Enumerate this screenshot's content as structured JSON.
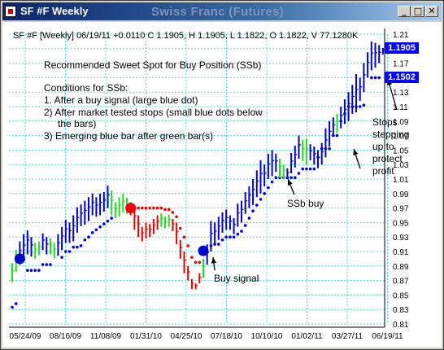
{
  "window": {
    "title": "SF #F Weekly",
    "chart_title": "Swiss Franc (Futures)",
    "buttons": {
      "minimize": "_",
      "maximize": "□",
      "close": "✕"
    }
  },
  "header": "SF #F [Weekly] 06/19/11 +0.0110 C 1.1905, H 1.1905, L 1.1822, O 1.1822, V 77.1280K",
  "notes": {
    "title": "Recommended Sweet Spot for Buy Position (SSb)",
    "conditions_title": "Conditions for SSb:",
    "c1": "1. After a buy signal (large blue dot)",
    "c2": "2) After market tested stops (small blue dots below",
    "c2b": "the bars)",
    "c3": "3) Emerging blue bar after green bar(s)"
  },
  "annotations": {
    "buy_signal": "Buy signal",
    "ssb_buy": "SSb buy",
    "stops1": "Stops",
    "stops2": "stepping",
    "stops3": "up to",
    "stops4": "protect",
    "stops5": "profit"
  },
  "price_tags": {
    "last": "1.1905",
    "stop": "1.1502"
  },
  "colors": {
    "up": "#0000c8",
    "correction": "#22dd22",
    "down": "#ee0000",
    "stop_long": "#0000dd",
    "stop_short": "#ee0000",
    "grid": "#40e0d0"
  },
  "chart_data": {
    "type": "ohlc-bar",
    "y_ticks": [
      "1.21",
      "1.19",
      "1.17",
      "1.15",
      "1.13",
      "1.11",
      "1.09",
      "1.07",
      "1.05",
      "1.03",
      "1.01",
      "0.99",
      "0.97",
      "0.95",
      "0.93",
      "0.91",
      "0.89",
      "0.87",
      "0.85",
      "0.83",
      "0.81"
    ],
    "ylim": [
      0.81,
      1.21
    ],
    "x_ticks": [
      "05/24/09",
      "08/16/09",
      "11/08/09",
      "01/31/10",
      "04/25/10",
      "07/18/10",
      "10/10/10",
      "01/02/11",
      "03/27/11",
      "06/19/11"
    ],
    "bars": [
      {
        "l": 0.868,
        "h": 0.894,
        "c": "g"
      },
      {
        "l": 0.882,
        "h": 0.912,
        "c": "g"
      },
      {
        "l": 0.892,
        "h": 0.924,
        "c": "b"
      },
      {
        "l": 0.896,
        "h": 0.934,
        "c": "b"
      },
      {
        "l": 0.906,
        "h": 0.939,
        "c": "b"
      },
      {
        "l": 0.903,
        "h": 0.93,
        "c": "b"
      },
      {
        "l": 0.9,
        "h": 0.922,
        "c": "g"
      },
      {
        "l": 0.905,
        "h": 0.924,
        "c": "g"
      },
      {
        "l": 0.912,
        "h": 0.935,
        "c": "b"
      },
      {
        "l": 0.906,
        "h": 0.93,
        "c": "b"
      },
      {
        "l": 0.906,
        "h": 0.928,
        "c": "g"
      },
      {
        "l": 0.901,
        "h": 0.922,
        "c": "g"
      },
      {
        "l": 0.904,
        "h": 0.934,
        "c": "b"
      },
      {
        "l": 0.912,
        "h": 0.944,
        "c": "b"
      },
      {
        "l": 0.922,
        "h": 0.954,
        "c": "b"
      },
      {
        "l": 0.922,
        "h": 0.95,
        "c": "b"
      },
      {
        "l": 0.924,
        "h": 0.96,
        "c": "b"
      },
      {
        "l": 0.936,
        "h": 0.971,
        "c": "b"
      },
      {
        "l": 0.945,
        "h": 0.975,
        "c": "b"
      },
      {
        "l": 0.947,
        "h": 0.98,
        "c": "b"
      },
      {
        "l": 0.952,
        "h": 0.985,
        "c": "b"
      },
      {
        "l": 0.96,
        "h": 0.99,
        "c": "b"
      },
      {
        "l": 0.958,
        "h": 0.985,
        "c": "b"
      },
      {
        "l": 0.96,
        "h": 0.99,
        "c": "b"
      },
      {
        "l": 0.965,
        "h": 0.992,
        "c": "b"
      },
      {
        "l": 0.97,
        "h": 1.001,
        "c": "b"
      },
      {
        "l": 0.96,
        "h": 0.994,
        "c": "g"
      },
      {
        "l": 0.956,
        "h": 0.978,
        "c": "g"
      },
      {
        "l": 0.958,
        "h": 0.985,
        "c": "g"
      },
      {
        "l": 0.964,
        "h": 0.99,
        "c": "g"
      },
      {
        "l": 0.962,
        "h": 0.984,
        "c": "g"
      },
      {
        "l": 0.96,
        "h": 0.978,
        "c": "r"
      },
      {
        "l": 0.94,
        "h": 0.972,
        "c": "r"
      },
      {
        "l": 0.93,
        "h": 0.96,
        "c": "r"
      },
      {
        "l": 0.924,
        "h": 0.944,
        "c": "r"
      },
      {
        "l": 0.928,
        "h": 0.95,
        "c": "r"
      },
      {
        "l": 0.93,
        "h": 0.948,
        "c": "r"
      },
      {
        "l": 0.934,
        "h": 0.955,
        "c": "r"
      },
      {
        "l": 0.94,
        "h": 0.96,
        "c": "r"
      },
      {
        "l": 0.944,
        "h": 0.963,
        "c": "g"
      },
      {
        "l": 0.942,
        "h": 0.958,
        "c": "g"
      },
      {
        "l": 0.944,
        "h": 0.961,
        "c": "g"
      },
      {
        "l": 0.938,
        "h": 0.955,
        "c": "r"
      },
      {
        "l": 0.92,
        "h": 0.95,
        "c": "r"
      },
      {
        "l": 0.9,
        "h": 0.926,
        "c": "r"
      },
      {
        "l": 0.88,
        "h": 0.91,
        "c": "r"
      },
      {
        "l": 0.87,
        "h": 0.89,
        "c": "r"
      },
      {
        "l": 0.858,
        "h": 0.872,
        "c": "r"
      },
      {
        "l": 0.858,
        "h": 0.866,
        "c": "r"
      },
      {
        "l": 0.866,
        "h": 0.88,
        "c": "r"
      },
      {
        "l": 0.874,
        "h": 0.9,
        "c": "g"
      },
      {
        "l": 0.892,
        "h": 0.92,
        "c": "b"
      },
      {
        "l": 0.91,
        "h": 0.952,
        "c": "b"
      },
      {
        "l": 0.92,
        "h": 0.95,
        "c": "b"
      },
      {
        "l": 0.926,
        "h": 0.958,
        "c": "b"
      },
      {
        "l": 0.936,
        "h": 0.964,
        "c": "b"
      },
      {
        "l": 0.94,
        "h": 0.968,
        "c": "b"
      },
      {
        "l": 0.94,
        "h": 0.96,
        "c": "b"
      },
      {
        "l": 0.934,
        "h": 0.956,
        "c": "b"
      },
      {
        "l": 0.944,
        "h": 0.976,
        "c": "b"
      },
      {
        "l": 0.95,
        "h": 0.98,
        "c": "b"
      },
      {
        "l": 0.962,
        "h": 0.992,
        "c": "b"
      },
      {
        "l": 0.97,
        "h": 1.0,
        "c": "b"
      },
      {
        "l": 0.974,
        "h": 1.01,
        "c": "b"
      },
      {
        "l": 0.985,
        "h": 1.022,
        "c": "b"
      },
      {
        "l": 0.99,
        "h": 1.036,
        "c": "b"
      },
      {
        "l": 1.0,
        "h": 1.03,
        "c": "b"
      },
      {
        "l": 1.01,
        "h": 1.045,
        "c": "b"
      },
      {
        "l": 1.014,
        "h": 1.05,
        "c": "b"
      },
      {
        "l": 1.02,
        "h": 1.045,
        "c": "b"
      },
      {
        "l": 1.012,
        "h": 1.038,
        "c": "g"
      },
      {
        "l": 1.01,
        "h": 1.03,
        "c": "g"
      },
      {
        "l": 1.01,
        "h": 1.025,
        "c": "b"
      },
      {
        "l": 1.018,
        "h": 1.046,
        "c": "b"
      },
      {
        "l": 1.026,
        "h": 1.056,
        "c": "b"
      },
      {
        "l": 1.038,
        "h": 1.07,
        "c": "b"
      },
      {
        "l": 1.035,
        "h": 1.064,
        "c": "g"
      },
      {
        "l": 1.03,
        "h": 1.066,
        "c": "g"
      },
      {
        "l": 1.036,
        "h": 1.058,
        "c": "b"
      },
      {
        "l": 1.03,
        "h": 1.055,
        "c": "b"
      },
      {
        "l": 1.025,
        "h": 1.05,
        "c": "b"
      },
      {
        "l": 1.03,
        "h": 1.06,
        "c": "b"
      },
      {
        "l": 1.04,
        "h": 1.08,
        "c": "b"
      },
      {
        "l": 1.055,
        "h": 1.09,
        "c": "b"
      },
      {
        "l": 1.07,
        "h": 1.095,
        "c": "b"
      },
      {
        "l": 1.074,
        "h": 1.1,
        "c": "g"
      },
      {
        "l": 1.08,
        "h": 1.11,
        "c": "b"
      },
      {
        "l": 1.086,
        "h": 1.12,
        "c": "b"
      },
      {
        "l": 1.09,
        "h": 1.13,
        "c": "b"
      },
      {
        "l": 1.1,
        "h": 1.14,
        "c": "b"
      },
      {
        "l": 1.102,
        "h": 1.155,
        "c": "b"
      },
      {
        "l": 1.118,
        "h": 1.15,
        "c": "b"
      },
      {
        "l": 1.13,
        "h": 1.17,
        "c": "b"
      },
      {
        "l": 1.15,
        "h": 1.185,
        "c": "b"
      },
      {
        "l": 1.16,
        "h": 1.2,
        "c": "b"
      },
      {
        "l": 1.164,
        "h": 1.198,
        "c": "b"
      },
      {
        "l": 1.17,
        "h": 1.195,
        "c": "b"
      },
      {
        "l": 1.182,
        "h": 1.191,
        "c": "b"
      }
    ],
    "stops": [
      {
        "i": 0,
        "v": 0.833,
        "c": "b"
      },
      {
        "i": 1,
        "v": 0.838,
        "c": "b"
      },
      {
        "i": 4,
        "v": 0.884,
        "c": "b"
      },
      {
        "i": 5,
        "v": 0.884,
        "c": "b"
      },
      {
        "i": 6,
        "v": 0.884,
        "c": "b"
      },
      {
        "i": 7,
        "v": 0.884,
        "c": "b"
      },
      {
        "i": 8,
        "v": 0.892,
        "c": "b"
      },
      {
        "i": 9,
        "v": 0.892,
        "c": "b"
      },
      {
        "i": 10,
        "v": 0.892,
        "c": "b"
      },
      {
        "i": 13,
        "v": 0.902,
        "c": "b"
      },
      {
        "i": 14,
        "v": 0.91,
        "c": "b"
      },
      {
        "i": 15,
        "v": 0.91,
        "c": "b"
      },
      {
        "i": 16,
        "v": 0.916,
        "c": "b"
      },
      {
        "i": 17,
        "v": 0.916,
        "c": "b"
      },
      {
        "i": 18,
        "v": 0.918,
        "c": "b"
      },
      {
        "i": 19,
        "v": 0.926,
        "c": "b"
      },
      {
        "i": 20,
        "v": 0.93,
        "c": "b"
      },
      {
        "i": 21,
        "v": 0.936,
        "c": "b"
      },
      {
        "i": 22,
        "v": 0.94,
        "c": "b"
      },
      {
        "i": 23,
        "v": 0.944,
        "c": "b"
      },
      {
        "i": 24,
        "v": 0.948,
        "c": "b"
      },
      {
        "i": 25,
        "v": 0.952,
        "c": "b"
      },
      {
        "i": 26,
        "v": 0.956,
        "c": "b"
      },
      {
        "i": 32,
        "v": 0.97,
        "c": "r"
      },
      {
        "i": 33,
        "v": 0.97,
        "c": "r"
      },
      {
        "i": 34,
        "v": 0.97,
        "c": "r"
      },
      {
        "i": 35,
        "v": 0.97,
        "c": "r"
      },
      {
        "i": 36,
        "v": 0.97,
        "c": "r"
      },
      {
        "i": 37,
        "v": 0.97,
        "c": "r"
      },
      {
        "i": 38,
        "v": 0.97,
        "c": "r"
      },
      {
        "i": 39,
        "v": 0.97,
        "c": "r"
      },
      {
        "i": 40,
        "v": 0.968,
        "c": "r"
      },
      {
        "i": 41,
        "v": 0.968,
        "c": "r"
      },
      {
        "i": 42,
        "v": 0.964,
        "c": "r"
      },
      {
        "i": 43,
        "v": 0.958,
        "c": "r"
      },
      {
        "i": 44,
        "v": 0.942,
        "c": "r"
      },
      {
        "i": 45,
        "v": 0.93,
        "c": "r"
      },
      {
        "i": 46,
        "v": 0.918,
        "c": "r"
      },
      {
        "i": 47,
        "v": 0.902,
        "c": "r"
      },
      {
        "i": 48,
        "v": 0.895,
        "c": "r"
      },
      {
        "i": 49,
        "v": 0.895,
        "c": "r"
      },
      {
        "i": 52,
        "v": 0.918,
        "c": "b"
      },
      {
        "i": 53,
        "v": 0.92,
        "c": "b"
      },
      {
        "i": 54,
        "v": 0.92,
        "c": "b"
      },
      {
        "i": 55,
        "v": 0.926,
        "c": "b"
      },
      {
        "i": 56,
        "v": 0.93,
        "c": "b"
      },
      {
        "i": 57,
        "v": 0.93,
        "c": "b"
      },
      {
        "i": 58,
        "v": 0.93,
        "c": "b"
      },
      {
        "i": 59,
        "v": 0.934,
        "c": "b"
      },
      {
        "i": 60,
        "v": 0.938,
        "c": "b"
      },
      {
        "i": 61,
        "v": 0.946,
        "c": "b"
      },
      {
        "i": 62,
        "v": 0.956,
        "c": "b"
      },
      {
        "i": 63,
        "v": 0.966,
        "c": "b"
      },
      {
        "i": 64,
        "v": 0.974,
        "c": "b"
      },
      {
        "i": 65,
        "v": 0.982,
        "c": "b"
      },
      {
        "i": 66,
        "v": 0.99,
        "c": "b"
      },
      {
        "i": 67,
        "v": 0.998,
        "c": "b"
      },
      {
        "i": 68,
        "v": 1.006,
        "c": "b"
      },
      {
        "i": 69,
        "v": 1.012,
        "c": "b"
      },
      {
        "i": 70,
        "v": 1.012,
        "c": "b"
      },
      {
        "i": 71,
        "v": 1.012,
        "c": "b"
      },
      {
        "i": 72,
        "v": 1.012,
        "c": "b"
      },
      {
        "i": 73,
        "v": 1.012,
        "c": "b"
      },
      {
        "i": 74,
        "v": 1.012,
        "c": "b"
      },
      {
        "i": 75,
        "v": 1.018,
        "c": "b"
      },
      {
        "i": 76,
        "v": 1.024,
        "c": "b"
      },
      {
        "i": 77,
        "v": 1.024,
        "c": "b"
      },
      {
        "i": 78,
        "v": 1.024,
        "c": "b"
      },
      {
        "i": 79,
        "v": 1.024,
        "c": "b"
      },
      {
        "i": 80,
        "v": 1.04,
        "c": "b"
      },
      {
        "i": 81,
        "v": 1.052,
        "c": "b"
      },
      {
        "i": 82,
        "v": 1.052,
        "c": "b"
      },
      {
        "i": 83,
        "v": 1.052,
        "c": "b"
      },
      {
        "i": 84,
        "v": 1.07,
        "c": "b"
      },
      {
        "i": 85,
        "v": 1.07,
        "c": "b"
      },
      {
        "i": 86,
        "v": 1.09,
        "c": "b"
      },
      {
        "i": 87,
        "v": 1.1,
        "c": "b"
      },
      {
        "i": 88,
        "v": 1.11,
        "c": "b"
      },
      {
        "i": 89,
        "v": 1.11,
        "c": "b"
      },
      {
        "i": 90,
        "v": 1.11,
        "c": "b"
      },
      {
        "i": 91,
        "v": 1.11,
        "c": "b"
      },
      {
        "i": 92,
        "v": 1.112,
        "c": "b"
      },
      {
        "i": 94,
        "v": 1.15,
        "c": "b"
      },
      {
        "i": 95,
        "v": 1.15,
        "c": "b"
      },
      {
        "i": 96,
        "v": 1.15,
        "c": "b"
      }
    ],
    "signals": [
      {
        "i": 2,
        "v": 0.9,
        "c": "b"
      },
      {
        "i": 31,
        "v": 0.97,
        "c": "r"
      },
      {
        "i": 50,
        "v": 0.911,
        "c": "b"
      }
    ]
  }
}
